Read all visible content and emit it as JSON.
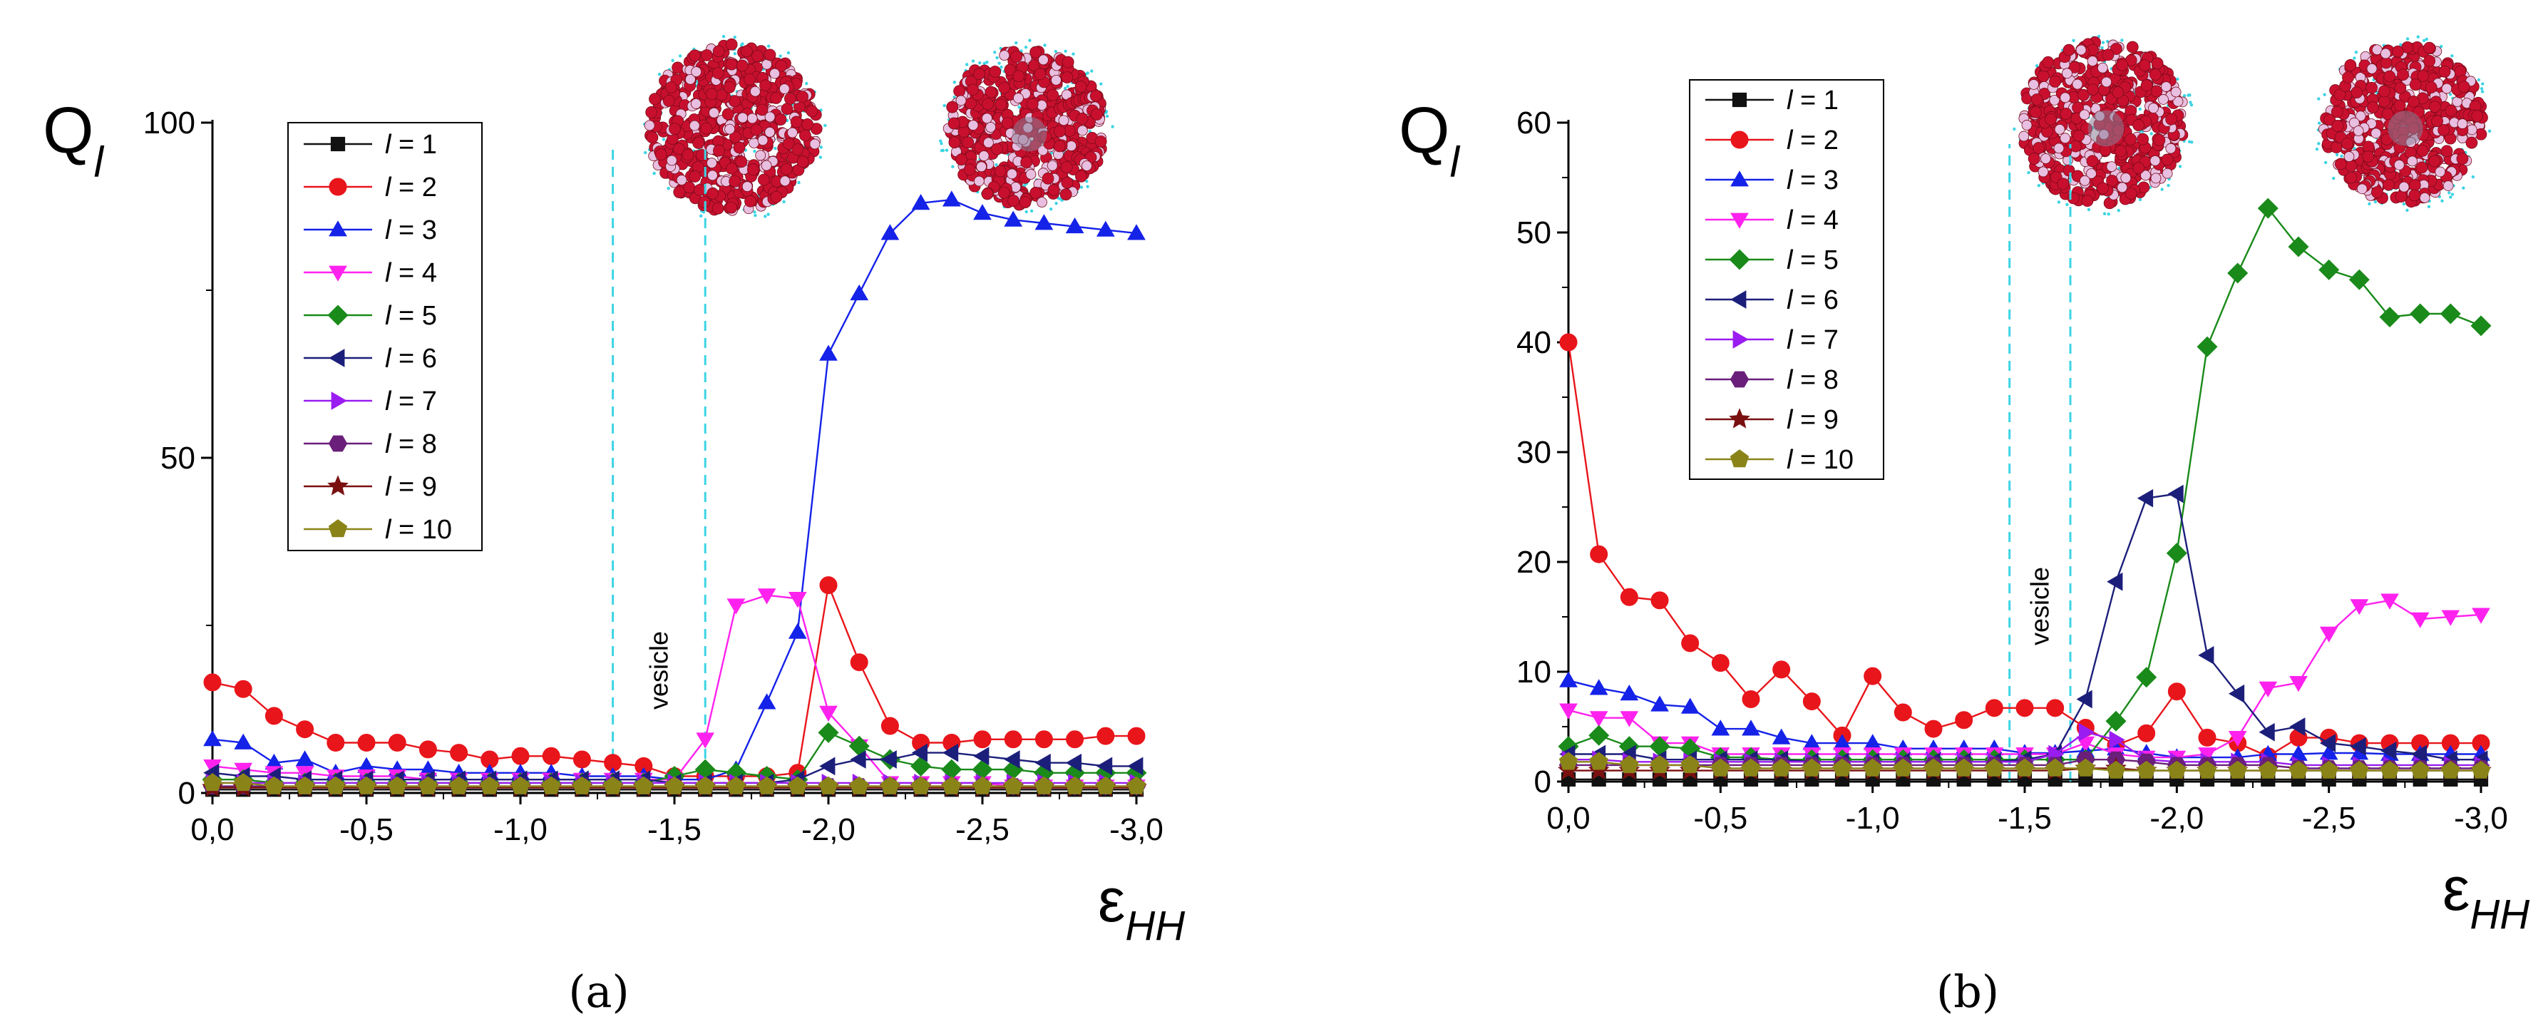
{
  "chart_data": [
    {
      "type": "line",
      "panel_label": "(a)",
      "ylabel": "Q",
      "ylabel_sub": "l",
      "xlabel": "ε",
      "xlabel_sub": "HH",
      "xlim": [
        0,
        -3
      ],
      "ylim": [
        0,
        100
      ],
      "xticks": [
        0,
        -0.5,
        -1,
        -1.5,
        -2,
        -2.5,
        -3
      ],
      "xtick_labels": [
        "0,0",
        "-0,5",
        "-1,0",
        "-1,5",
        "-2,0",
        "-2,5",
        "-3,0"
      ],
      "yticks": [
        0,
        50,
        100
      ],
      "ytick_labels": [
        "0",
        "50",
        "100"
      ],
      "grid": false,
      "legend_position": "upper-left",
      "annotation": "vesicle",
      "vlines": [
        -1.3,
        -1.6
      ],
      "x": [
        0,
        -0.1,
        -0.2,
        -0.3,
        -0.4,
        -0.5,
        -0.6,
        -0.7,
        -0.8,
        -0.9,
        -1.0,
        -1.1,
        -1.2,
        -1.3,
        -1.4,
        -1.5,
        -1.6,
        -1.7,
        -1.8,
        -1.9,
        -2.0,
        -2.1,
        -2.2,
        -2.3,
        -2.4,
        -2.5,
        -2.6,
        -2.7,
        -2.8,
        -2.9,
        -3.0
      ],
      "series": [
        {
          "name": "l = 1",
          "legend_prefix": "l",
          "legend_suffix": " = 1",
          "color": "#111111",
          "marker": "square",
          "values": [
            0.5,
            0.5,
            0.5,
            0.5,
            0.5,
            0.5,
            0.5,
            0.5,
            0.5,
            0.5,
            0.5,
            0.5,
            0.5,
            0.5,
            0.5,
            0.5,
            0.5,
            0.5,
            0.5,
            0.5,
            0.5,
            0.5,
            0.5,
            0.5,
            0.5,
            0.5,
            0.5,
            0.5,
            0.5,
            0.5,
            0.5
          ]
        },
        {
          "name": "l = 2",
          "legend_prefix": "l",
          "legend_suffix": " = 2",
          "color": "#e8151b",
          "marker": "circle",
          "values": [
            16.5,
            15.5,
            11.5,
            9.5,
            7.5,
            7.5,
            7.5,
            6.5,
            6.0,
            5.0,
            5.5,
            5.5,
            5.0,
            4.5,
            4.0,
            2.5,
            2.5,
            2.5,
            2.5,
            3.0,
            31.0,
            19.5,
            10.0,
            7.5,
            7.5,
            8.0,
            8.0,
            8.0,
            8.0,
            8.5,
            8.5
          ]
        },
        {
          "name": "l = 3",
          "legend_prefix": "l",
          "legend_suffix": " = 3",
          "color": "#1522e8",
          "marker": "triangle-up",
          "values": [
            8.0,
            7.5,
            4.5,
            5.0,
            3.0,
            4.0,
            3.5,
            3.5,
            3.0,
            3.0,
            3.0,
            3.0,
            2.5,
            2.5,
            2.5,
            2.0,
            2.0,
            3.5,
            13.5,
            24.0,
            65.5,
            74.5,
            83.5,
            88.0,
            88.5,
            86.5,
            85.5,
            85.0,
            84.5,
            84.0,
            83.5
          ]
        },
        {
          "name": "l = 4",
          "legend_prefix": "l",
          "legend_suffix": " = 4",
          "color": "#ff22ee",
          "marker": "triangle-down",
          "values": [
            4.0,
            3.5,
            3.0,
            3.0,
            2.5,
            2.5,
            2.5,
            2.0,
            2.0,
            2.0,
            2.0,
            2.0,
            2.0,
            2.0,
            2.0,
            2.0,
            8.0,
            28.0,
            29.5,
            29.0,
            12.0,
            7.0,
            1.5,
            1.5,
            1.5,
            1.5,
            1.0,
            1.0,
            1.0,
            1.0,
            1.0
          ]
        },
        {
          "name": "l = 5",
          "legend_prefix": "l",
          "legend_suffix": " = 5",
          "color": "#1a8a1a",
          "marker": "diamond",
          "values": [
            2.0,
            2.0,
            1.5,
            1.5,
            1.5,
            1.5,
            1.5,
            1.5,
            1.5,
            1.5,
            1.5,
            1.5,
            1.5,
            1.5,
            1.5,
            2.5,
            3.5,
            3.0,
            2.5,
            2.0,
            9.0,
            7.0,
            5.0,
            4.0,
            3.5,
            3.5,
            3.5,
            3.0,
            3.0,
            3.0,
            3.0
          ]
        },
        {
          "name": "l = 6",
          "legend_prefix": "l",
          "legend_suffix": " = 6",
          "color": "#1c1f7a",
          "marker": "triangle-left",
          "values": [
            3.0,
            2.5,
            2.5,
            2.0,
            2.0,
            2.0,
            2.0,
            2.0,
            2.0,
            2.0,
            2.0,
            2.0,
            2.0,
            2.0,
            2.0,
            1.5,
            1.5,
            1.5,
            1.5,
            2.0,
            4.0,
            5.0,
            5.0,
            6.0,
            6.0,
            5.5,
            5.0,
            4.5,
            4.5,
            4.0,
            4.0
          ]
        },
        {
          "name": "l = 7",
          "legend_prefix": "l",
          "legend_suffix": " = 7",
          "color": "#9a1cf0",
          "marker": "triangle-right",
          "values": [
            1.5,
            1.5,
            1.5,
            1.5,
            1.5,
            1.5,
            1.5,
            1.5,
            1.5,
            1.5,
            1.5,
            1.5,
            1.5,
            1.5,
            1.5,
            1.5,
            1.5,
            1.5,
            1.5,
            1.5,
            1.5,
            1.5,
            1.5,
            1.5,
            1.5,
            1.5,
            1.5,
            1.5,
            1.5,
            1.5,
            1.5
          ]
        },
        {
          "name": "l = 8",
          "legend_prefix": "l",
          "legend_suffix": " = 8",
          "color": "#6a1f7a",
          "marker": "hexagon",
          "values": [
            1.0,
            1.0,
            1.0,
            1.0,
            1.0,
            1.0,
            1.0,
            1.0,
            1.0,
            1.0,
            1.0,
            1.0,
            1.0,
            1.0,
            1.0,
            1.0,
            1.0,
            1.0,
            1.0,
            1.0,
            1.0,
            1.0,
            1.0,
            1.0,
            1.0,
            1.0,
            1.0,
            1.0,
            1.0,
            1.0,
            1.0
          ]
        },
        {
          "name": "l = 9",
          "legend_prefix": "l",
          "legend_suffix": " = 9",
          "color": "#7a1010",
          "marker": "star",
          "values": [
            0.8,
            0.8,
            0.8,
            0.8,
            0.8,
            0.8,
            0.8,
            0.8,
            0.8,
            0.8,
            0.8,
            0.8,
            0.8,
            0.8,
            0.8,
            0.8,
            0.8,
            0.8,
            0.8,
            0.8,
            0.8,
            0.8,
            0.8,
            0.8,
            0.8,
            0.8,
            0.8,
            0.8,
            0.8,
            0.8,
            0.8
          ]
        },
        {
          "name": "l = 10",
          "legend_prefix": "l",
          "legend_suffix": " = 10",
          "color": "#8a8418",
          "marker": "pentagon",
          "values": [
            1.5,
            1.5,
            1.0,
            1.0,
            1.0,
            1.0,
            1.0,
            1.0,
            1.0,
            1.0,
            1.0,
            1.0,
            1.0,
            1.0,
            1.0,
            1.0,
            1.0,
            1.0,
            1.0,
            1.0,
            1.0,
            1.0,
            1.0,
            1.0,
            1.0,
            1.0,
            1.0,
            1.0,
            1.0,
            1.0,
            1.0
          ]
        }
      ]
    },
    {
      "type": "line",
      "panel_label": "(b)",
      "ylabel": "Q",
      "ylabel_sub": "l",
      "xlabel": "ε",
      "xlabel_sub": "HH",
      "xlim": [
        0,
        -3
      ],
      "ylim": [
        0,
        60
      ],
      "xticks": [
        0,
        -0.5,
        -1,
        -1.5,
        -2,
        -2.5,
        -3
      ],
      "xtick_labels": [
        "0,0",
        "-0,5",
        "-1,0",
        "-1,5",
        "-2,0",
        "-2,5",
        "-3,0"
      ],
      "yticks": [
        0,
        10,
        20,
        30,
        40,
        50,
        60
      ],
      "ytick_labels": [
        "0",
        "10",
        "20",
        "30",
        "40",
        "50",
        "60"
      ],
      "grid": false,
      "legend_position": "upper-left",
      "annotation": "vesicle",
      "vlines": [
        -1.45,
        -1.65
      ],
      "x": [
        0,
        -0.1,
        -0.2,
        -0.3,
        -0.4,
        -0.5,
        -0.6,
        -0.7,
        -0.8,
        -0.9,
        -1.0,
        -1.1,
        -1.2,
        -1.3,
        -1.4,
        -1.5,
        -1.6,
        -1.7,
        -1.8,
        -1.9,
        -2.0,
        -2.1,
        -2.2,
        -2.3,
        -2.4,
        -2.5,
        -2.6,
        -2.7,
        -2.8,
        -2.9,
        -3.0
      ],
      "series": [
        {
          "name": "l = 1",
          "legend_prefix": "l",
          "legend_suffix": " = 1",
          "color": "#111111",
          "marker": "square",
          "values": [
            0.2,
            0.2,
            0.2,
            0.2,
            0.2,
            0.2,
            0.2,
            0.2,
            0.2,
            0.2,
            0.2,
            0.2,
            0.2,
            0.2,
            0.2,
            0.2,
            0.2,
            0.2,
            0.2,
            0.2,
            0.2,
            0.2,
            0.2,
            0.2,
            0.2,
            0.2,
            0.2,
            0.2,
            0.2,
            0.2,
            0.2
          ]
        },
        {
          "name": "l = 2",
          "legend_prefix": "l",
          "legend_suffix": " = 2",
          "color": "#e8151b",
          "marker": "circle",
          "values": [
            40.0,
            20.7,
            16.8,
            16.5,
            12.6,
            10.8,
            7.5,
            10.2,
            7.3,
            4.2,
            9.6,
            6.3,
            4.8,
            5.6,
            6.7,
            6.7,
            6.7,
            4.9,
            3.3,
            4.4,
            8.2,
            4.0,
            3.5,
            2.3,
            4.0,
            4.0,
            3.5,
            3.5,
            3.5,
            3.5,
            3.5
          ]
        },
        {
          "name": "l = 3",
          "legend_prefix": "l",
          "legend_suffix": " = 3",
          "color": "#1522e8",
          "marker": "triangle-up",
          "values": [
            9.2,
            8.5,
            8.0,
            7.0,
            6.8,
            4.8,
            4.8,
            4.0,
            3.5,
            3.5,
            3.5,
            3.0,
            3.0,
            3.0,
            3.0,
            2.6,
            2.6,
            2.8,
            3.0,
            2.6,
            2.2,
            2.2,
            2.2,
            2.5,
            2.5,
            2.6,
            2.6,
            2.5,
            2.5,
            2.5,
            2.5
          ]
        },
        {
          "name": "l = 4",
          "legend_prefix": "l",
          "legend_suffix": " = 4",
          "color": "#ff22ee",
          "marker": "triangle-down",
          "values": [
            6.5,
            5.8,
            5.8,
            3.5,
            3.5,
            2.5,
            2.5,
            2.5,
            2.5,
            2.5,
            2.5,
            2.5,
            2.5,
            2.5,
            2.5,
            2.5,
            2.5,
            3.5,
            2.5,
            2.2,
            2.2,
            2.5,
            4.0,
            8.5,
            9.0,
            13.5,
            16.0,
            16.5,
            14.8,
            15.0,
            15.2
          ]
        },
        {
          "name": "l = 5",
          "legend_prefix": "l",
          "legend_suffix": " = 5",
          "color": "#1a8a1a",
          "marker": "diamond",
          "values": [
            3.2,
            4.2,
            3.2,
            3.2,
            3.0,
            2.2,
            2.2,
            2.0,
            2.0,
            2.0,
            2.0,
            2.0,
            2.0,
            2.0,
            2.0,
            2.0,
            2.0,
            2.0,
            5.5,
            9.5,
            20.8,
            39.6,
            46.3,
            52.2,
            48.7,
            46.6,
            45.7,
            42.3,
            42.6,
            42.6,
            41.5
          ]
        },
        {
          "name": "l = 6",
          "legend_prefix": "l",
          "legend_suffix": " = 6",
          "color": "#1c1f7a",
          "marker": "triangle-left",
          "values": [
            2.5,
            2.5,
            2.5,
            2.0,
            2.0,
            2.0,
            2.0,
            2.0,
            1.8,
            1.8,
            1.8,
            1.8,
            1.8,
            1.8,
            1.8,
            2.0,
            2.5,
            7.5,
            18.2,
            25.8,
            26.2,
            11.5,
            8.0,
            4.5,
            5.0,
            3.5,
            3.2,
            2.8,
            2.5,
            2.0,
            2.0
          ]
        },
        {
          "name": "l = 7",
          "legend_prefix": "l",
          "legend_suffix": " = 7",
          "color": "#9a1cf0",
          "marker": "triangle-right",
          "values": [
            2.0,
            2.0,
            1.8,
            1.8,
            1.8,
            1.8,
            1.8,
            1.8,
            1.8,
            1.8,
            1.8,
            1.8,
            1.8,
            1.8,
            1.8,
            1.8,
            2.5,
            4.5,
            3.8,
            2.0,
            1.8,
            1.8,
            1.8,
            1.8,
            1.5,
            1.5,
            1.5,
            1.5,
            1.5,
            1.5,
            1.5
          ]
        },
        {
          "name": "l = 8",
          "legend_prefix": "l",
          "legend_suffix": " = 8",
          "color": "#6a1f7a",
          "marker": "hexagon",
          "values": [
            1.5,
            1.5,
            1.5,
            1.5,
            1.5,
            1.5,
            1.5,
            1.5,
            1.5,
            1.5,
            1.5,
            1.5,
            1.5,
            1.5,
            1.5,
            1.5,
            1.5,
            2.0,
            2.0,
            1.8,
            1.5,
            1.5,
            1.5,
            1.5,
            1.2,
            1.2,
            1.2,
            1.2,
            1.2,
            1.2,
            1.2
          ]
        },
        {
          "name": "l = 9",
          "legend_prefix": "l",
          "legend_suffix": " = 9",
          "color": "#7a1010",
          "marker": "star",
          "values": [
            1.0,
            1.0,
            1.0,
            1.0,
            1.0,
            1.0,
            1.0,
            1.0,
            1.0,
            1.0,
            1.0,
            1.0,
            1.0,
            1.0,
            1.0,
            1.0,
            1.0,
            1.2,
            1.2,
            1.0,
            1.0,
            1.0,
            1.0,
            1.0,
            1.0,
            1.0,
            1.0,
            1.0,
            1.0,
            1.0,
            1.0
          ]
        },
        {
          "name": "l = 10",
          "legend_prefix": "l",
          "legend_suffix": " = 10",
          "color": "#8a8418",
          "marker": "pentagon",
          "values": [
            1.8,
            1.8,
            1.5,
            1.5,
            1.5,
            1.2,
            1.2,
            1.2,
            1.2,
            1.2,
            1.2,
            1.2,
            1.2,
            1.2,
            1.2,
            1.2,
            1.2,
            1.2,
            1.0,
            1.0,
            1.0,
            1.0,
            1.0,
            1.0,
            1.0,
            1.0,
            1.0,
            1.0,
            1.0,
            1.0,
            1.0
          ]
        }
      ]
    }
  ],
  "colors": {
    "axis": "#000000",
    "vline": "#3cd4e4",
    "legend_border": "#000000",
    "bead_red": "#c8102e",
    "bead_pink": "#e8bfe0",
    "bead_cyan": "#3cd4e4"
  }
}
